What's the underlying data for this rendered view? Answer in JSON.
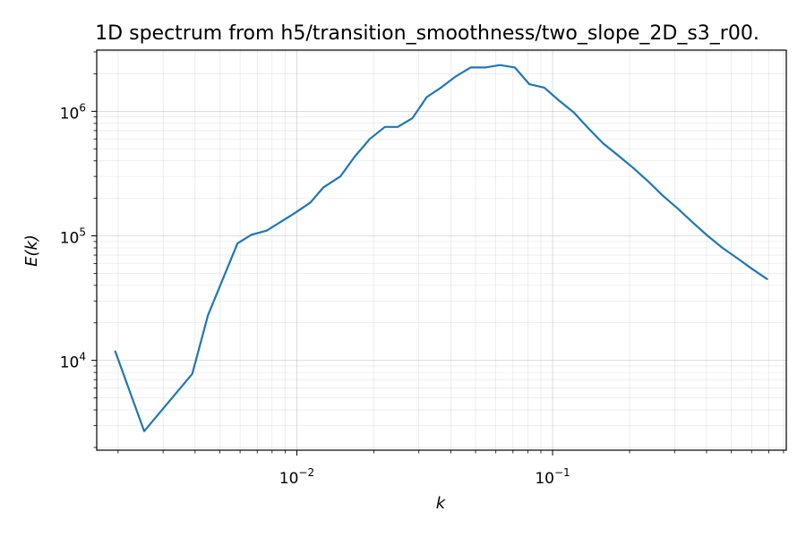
{
  "chart_data": {
    "type": "line",
    "title": "1D spectrum from h5/transition_smoothness/two_slope_2D_s3_r00.",
    "xlabel": "k",
    "ylabel": "E(k)",
    "xscale": "log",
    "yscale": "log",
    "xlim": [
      0.00165,
      0.82
    ],
    "ylim": [
      1900,
      3100000
    ],
    "grid": true,
    "x_ticks": [
      {
        "value": 0.01,
        "base": "10",
        "exp": "−2"
      },
      {
        "value": 0.1,
        "base": "10",
        "exp": "−1"
      }
    ],
    "y_ticks": [
      {
        "value": 10000,
        "base": "10",
        "exp": "4"
      },
      {
        "value": 100000,
        "base": "10",
        "exp": "5"
      },
      {
        "value": 1000000,
        "base": "10",
        "exp": "6"
      }
    ],
    "series": [
      {
        "color": "#1f77b4",
        "x": [
          0.00195,
          0.00253,
          0.0039,
          0.00449,
          0.00586,
          0.00664,
          0.00762,
          0.0098,
          0.0113,
          0.0127,
          0.0148,
          0.0168,
          0.0193,
          0.0221,
          0.0248,
          0.0283,
          0.0322,
          0.0366,
          0.0417,
          0.0478,
          0.0545,
          0.0623,
          0.0712,
          0.0811,
          0.0928,
          0.106,
          0.121,
          0.138,
          0.158,
          0.181,
          0.207,
          0.236,
          0.27,
          0.309,
          0.353,
          0.404,
          0.462,
          0.528,
          0.604,
          0.69
        ],
        "y": [
          11800,
          2700,
          7800,
          23000,
          87000,
          102000,
          110000,
          152000,
          185000,
          245000,
          300000,
          430000,
          600000,
          750000,
          750000,
          880000,
          1300000,
          1550000,
          1900000,
          2250000,
          2250000,
          2350000,
          2250000,
          1650000,
          1550000,
          1220000,
          980000,
          730000,
          550000,
          440000,
          350000,
          275000,
          210000,
          165000,
          128000,
          100000,
          80000,
          66000,
          54000,
          45000
        ]
      }
    ]
  }
}
